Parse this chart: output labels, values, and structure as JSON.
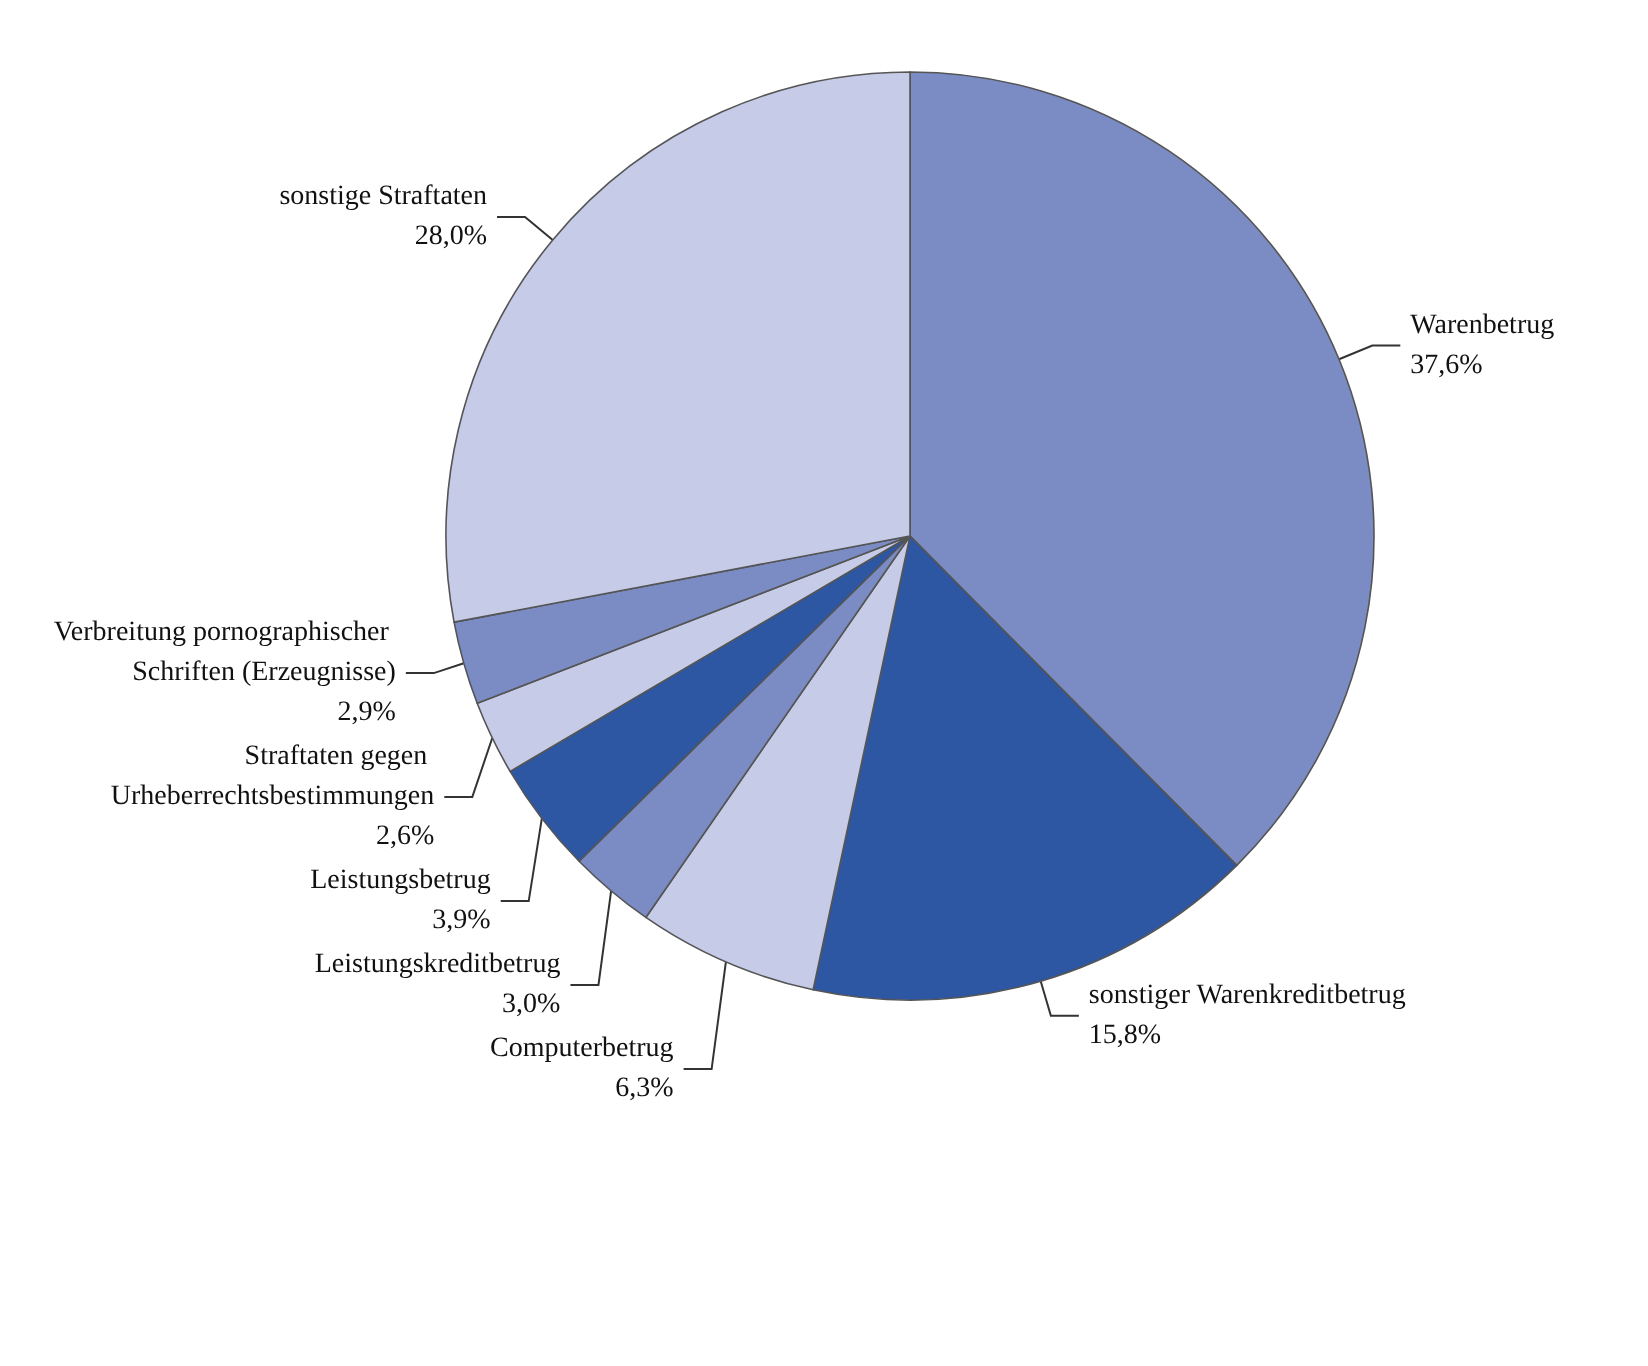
{
  "chart_data": {
    "type": "pie",
    "categories": [
      "Warenbetrug",
      "sonstiger Warenkreditbetrug",
      "Computerbetrug",
      "Leistungskreditbetrug",
      "Leistungsbetrug",
      "Straftaten gegen Urheberrechtsbestimmungen",
      "Verbreitung pornographischer Schriften (Erzeugnisse)",
      "sonstige Straftaten"
    ],
    "values": [
      37.6,
      15.8,
      6.3,
      3.0,
      3.9,
      2.6,
      2.9,
      28.0
    ],
    "value_labels": [
      "37,6%",
      "15,8%",
      "6,3%",
      "3,0%",
      "3,9%",
      "2,6%",
      "2,9%",
      "28,0%"
    ],
    "colors": [
      "#7b8cc4",
      "#2d56a3",
      "#c6cbe8",
      "#7b8cc4",
      "#2d56a3",
      "#c6cbe8",
      "#7b8cc4",
      "#c6cbe8"
    ],
    "legend": false
  }
}
